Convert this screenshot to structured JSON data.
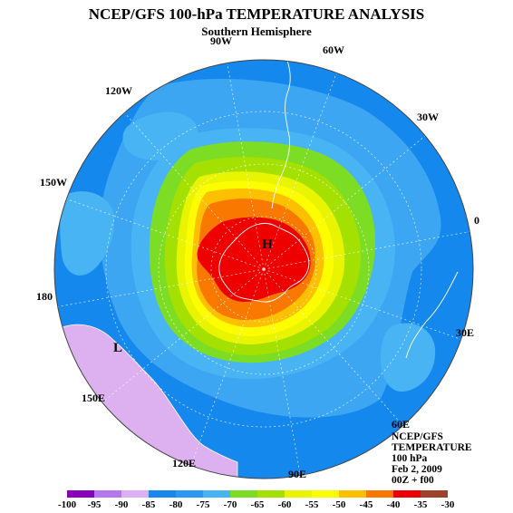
{
  "title": "NCEP/GFS 100-hPa TEMPERATURE ANALYSIS",
  "subtitle": "Southern Hemisphere",
  "longitude_labels": [
    "90W",
    "60W",
    "30W",
    "0",
    "30E",
    "60E",
    "90E",
    "120E",
    "150E",
    "180",
    "150W",
    "120W"
  ],
  "pressure_markers": {
    "high": "H",
    "low": "L"
  },
  "info": {
    "line1": "NCEP/GFS",
    "line2": "TEMPERATURE",
    "line3": "100 hPa",
    "line4": "Feb 2, 2009",
    "line5": "00Z + f00"
  },
  "legend": {
    "ticks": [
      "-100",
      "-95",
      "-90",
      "-85",
      "-80",
      "-75",
      "-70",
      "-65",
      "-60",
      "-55",
      "-50",
      "-45",
      "-40",
      "-35",
      "-30"
    ],
    "colors": [
      "#8800bb",
      "#b477ee",
      "#dcb0f4",
      "#1888ee",
      "#2c98f4",
      "#48b4f4",
      "#7ddc24",
      "#a4e000",
      "#e8f400",
      "#fdfd00",
      "#fcc000",
      "#f87800",
      "#ee0000",
      "#a04028"
    ],
    "ocean_color": "#1488ec",
    "land_color": "#ddb0f0"
  }
}
